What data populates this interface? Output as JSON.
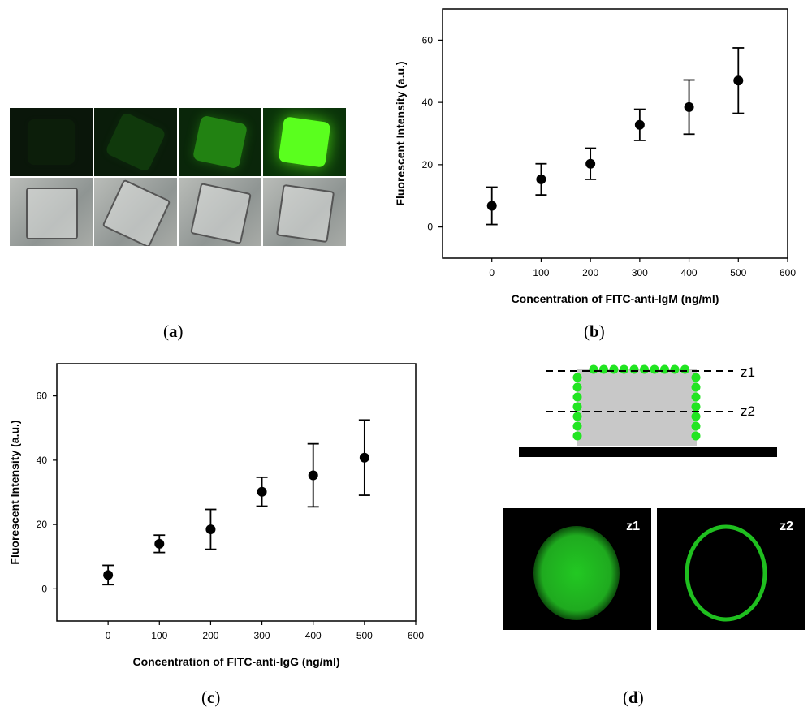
{
  "panel_labels": {
    "a": "a",
    "b": "b",
    "c": "c",
    "d": "d"
  },
  "colors": {
    "green": "#22e522",
    "black": "#000000",
    "gray": "#c8c8c8"
  },
  "panel_a": {
    "rows": [
      "fluorescence",
      "brightfield"
    ],
    "fluorescence_levels": [
      0.05,
      0.25,
      0.6,
      1.0
    ]
  },
  "chart_data": [
    {
      "id": "b",
      "type": "scatter",
      "title": "",
      "xlabel": "Concentration of FITC-anti-IgM (ng/ml)",
      "ylabel": "Fluorescent Intensity (a.u.)",
      "xlim": [
        -100,
        600
      ],
      "ylim": [
        -10,
        70
      ],
      "xticks": [
        0,
        100,
        200,
        300,
        400,
        500,
        600
      ],
      "yticks": [
        0,
        20,
        40,
        60
      ],
      "x": [
        0,
        100,
        200,
        300,
        400,
        500
      ],
      "y": [
        6.8,
        15.3,
        20.3,
        32.8,
        38.5,
        47.0
      ],
      "error": [
        6.0,
        5.0,
        5.0,
        5.0,
        8.7,
        10.5
      ]
    },
    {
      "id": "c",
      "type": "scatter",
      "title": "",
      "xlabel": "Concentration of FITC-anti-IgG (ng/ml)",
      "ylabel": "Fluorescent Intensity (a.u.)",
      "xlim": [
        -100,
        600
      ],
      "ylim": [
        -10,
        70
      ],
      "xticks": [
        0,
        100,
        200,
        300,
        400,
        500,
        600
      ],
      "yticks": [
        0,
        20,
        40,
        60
      ],
      "x": [
        0,
        100,
        200,
        300,
        400,
        500
      ],
      "y": [
        4.3,
        14.0,
        18.5,
        30.2,
        35.3,
        40.8
      ],
      "error": [
        3.0,
        2.7,
        6.2,
        4.5,
        9.8,
        11.7
      ]
    }
  ],
  "panel_d": {
    "plane_labels": [
      "z1",
      "z2"
    ]
  }
}
